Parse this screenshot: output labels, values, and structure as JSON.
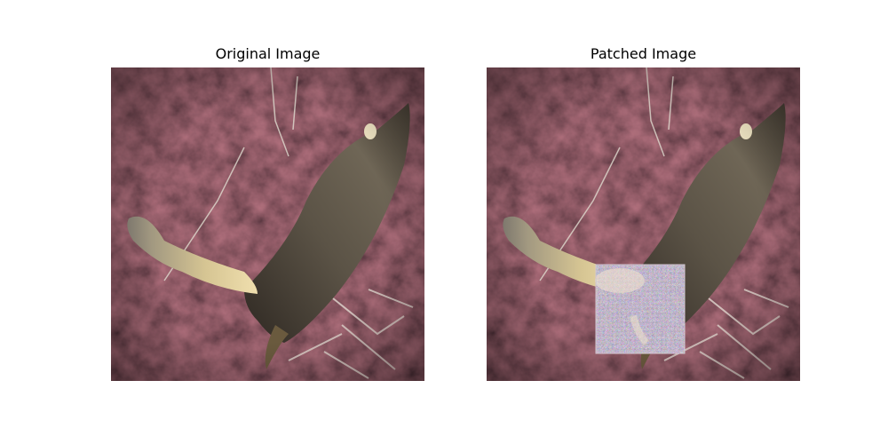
{
  "figure": {
    "panels": [
      {
        "title": "Original Image",
        "subject": "flat fish (guitarfish / ray) on dark reddish seabed",
        "has_patch": false
      },
      {
        "title": "Patched Image",
        "subject": "same fish image with adversarial noise patch in lower-middle region",
        "has_patch": true
      }
    ],
    "colors": {
      "background": "#2a1a1c",
      "fish_body": "#5a5145",
      "fish_highlight": "#d9c79a",
      "patch_tint": "#b8a6b8"
    }
  }
}
